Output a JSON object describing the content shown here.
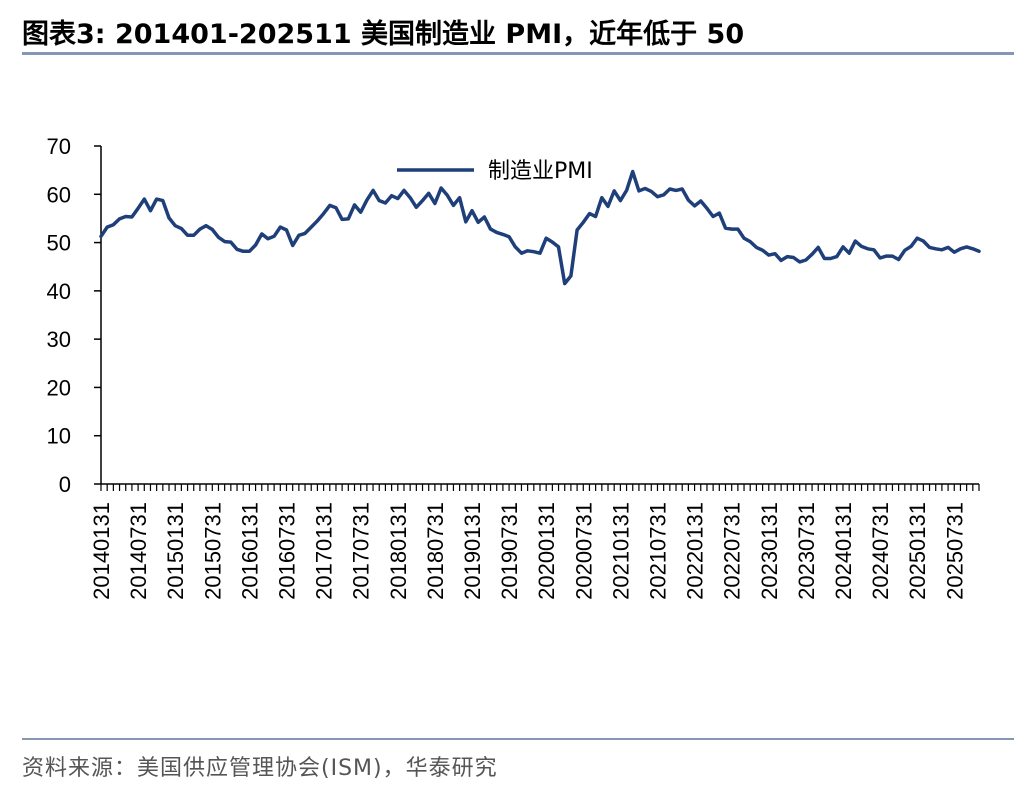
{
  "header": {
    "title": "图表3:  201401-202511 美国制造业 PMI，近年低于 50"
  },
  "footer": {
    "source": "资料来源：美国供应管理协会(ISM)，华泰研究"
  },
  "colors": {
    "series": "#1f3f7a",
    "axis": "#000000",
    "rule": "#8696b4"
  },
  "chart_data": {
    "type": "line",
    "title": "",
    "xlabel": "",
    "ylabel": "",
    "ylim": [
      0,
      70
    ],
    "yticks": [
      0,
      10,
      20,
      30,
      40,
      50,
      60,
      70
    ],
    "grid": false,
    "legend_position": "top-center",
    "x_start": "2014-01",
    "x_end": "2025-11",
    "x_tick_labels": [
      "20140131",
      "20140731",
      "20150131",
      "20150731",
      "20160131",
      "20160731",
      "20170131",
      "20170731",
      "20180131",
      "20180731",
      "20190131",
      "20190731",
      "20200131",
      "20200731",
      "20210131",
      "20210731",
      "20220131",
      "20220731",
      "20230131",
      "20230731",
      "20240131",
      "20240731",
      "20250131",
      "20250731"
    ],
    "series": [
      {
        "name": "制造业PMI",
        "values": [
          51.3,
          53.2,
          53.7,
          54.9,
          55.4,
          55.3,
          57.1,
          59.0,
          56.6,
          59.0,
          58.7,
          55.1,
          53.5,
          52.9,
          51.5,
          51.5,
          52.8,
          53.5,
          52.7,
          51.1,
          50.2,
          50.1,
          48.6,
          48.2,
          48.2,
          49.5,
          51.8,
          50.8,
          51.3,
          53.2,
          52.6,
          49.4,
          51.5,
          51.9,
          53.2,
          54.5,
          56.0,
          57.7,
          57.2,
          54.8,
          54.9,
          57.8,
          56.3,
          58.8,
          60.8,
          58.7,
          58.2,
          59.7,
          59.1,
          60.8,
          59.3,
          57.3,
          58.7,
          60.2,
          58.1,
          61.3,
          59.8,
          57.7,
          59.3,
          54.3,
          56.6,
          54.2,
          55.3,
          52.8,
          52.1,
          51.7,
          51.2,
          49.1,
          47.8,
          48.3,
          48.1,
          47.8,
          50.9,
          50.1,
          49.1,
          41.5,
          43.1,
          52.6,
          54.2,
          56.0,
          55.4,
          59.3,
          57.5,
          60.7,
          58.7,
          60.8,
          64.7,
          60.7,
          61.2,
          60.6,
          59.5,
          59.9,
          61.1,
          60.8,
          61.1,
          58.8,
          57.6,
          58.6,
          57.1,
          55.4,
          56.1,
          53.0,
          52.8,
          52.8,
          50.9,
          50.2,
          49.0,
          48.4,
          47.4,
          47.7,
          46.3,
          47.1,
          46.9,
          46.0,
          46.4,
          47.6,
          49.0,
          46.7,
          46.7,
          47.1,
          49.1,
          47.8,
          50.3,
          49.2,
          48.7,
          48.5,
          46.8,
          47.2,
          47.2,
          46.5,
          48.4,
          49.2,
          50.9,
          50.3,
          49.0,
          48.7,
          48.5,
          49.0,
          48.0,
          48.7,
          49.1,
          48.7,
          48.2
        ]
      }
    ]
  }
}
